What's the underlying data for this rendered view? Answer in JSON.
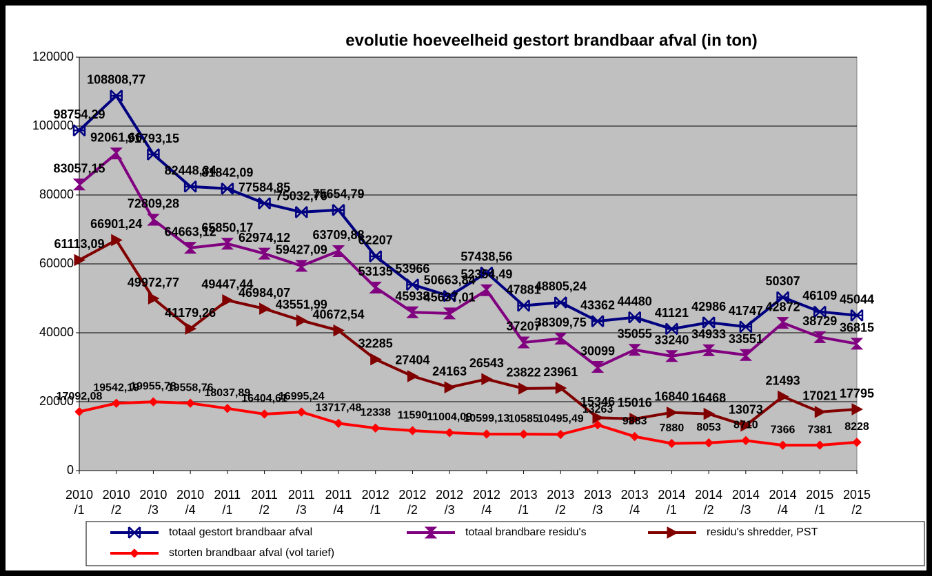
{
  "chart_data": {
    "type": "line",
    "title": "evolutie hoeveelheid gestort brandbaar afval (in ton)",
    "categories": [
      "2010 /1",
      "2010 /2",
      "2010 /3",
      "2010 /4",
      "2011 /1",
      "2011 /2",
      "2011 /3",
      "2011 /4",
      "2012 /1",
      "2012 /2",
      "2012 /3",
      "2012 /4",
      "2013 /1",
      "2013 /2",
      "2013 /3",
      "2013 /4",
      "2014 /1",
      "2014 /2",
      "2014 /3",
      "2014 /4",
      "2015 /1",
      "2015 /2"
    ],
    "ylim": [
      0,
      120000
    ],
    "yticks": [
      0,
      20000,
      40000,
      60000,
      80000,
      100000,
      120000
    ],
    "grid": true,
    "legend": "bottom",
    "series": [
      {
        "name": "totaal gestort brandbaar afval",
        "color": "#000080",
        "marker": "star",
        "values": [
          98754.29,
          108808.77,
          91793.15,
          82448.34,
          81842.09,
          77584.85,
          75032.76,
          75654.79,
          62207,
          53966,
          50663.84,
          57438.56,
          47881,
          48805.24,
          43362,
          44480,
          41121,
          42986,
          41747,
          50307,
          46109,
          45044
        ],
        "value_labels": [
          "98754,29",
          "108808,77",
          "91793,15",
          "82448,34",
          "81842,09",
          "77584,85",
          "75032,76",
          "75654,79",
          "62207",
          "53966",
          "50663,84",
          "57438,56",
          "47881",
          "48805,24",
          "43362",
          "44480",
          "41121",
          "42986",
          "41747",
          "50307",
          "46109",
          "45044"
        ]
      },
      {
        "name": "totaal brandbare residu's",
        "color": "#800080",
        "marker": "hourglass",
        "values": [
          83057.15,
          92061.66,
          72809.28,
          64663.12,
          65850.17,
          62974.12,
          59427.09,
          63709.88,
          53135,
          45938,
          45637.01,
          52354.49,
          37207,
          38309.75,
          30099,
          35055,
          33240,
          34933,
          33551,
          42872,
          38729,
          36815
        ],
        "value_labels": [
          "83057,15",
          "92061,66",
          "72809,28",
          "64663,12",
          "65850,17",
          "62974,12",
          "59427,09",
          "63709,88",
          "53135",
          "45938",
          "45637,01",
          "52354,49",
          "37207",
          "38309,75",
          "30099",
          "35055",
          "33240",
          "34933",
          "33551",
          "42872",
          "38729",
          "36815"
        ]
      },
      {
        "name": "residu's shredder, PST",
        "color": "#800000",
        "marker": "triangle",
        "values": [
          61113.09,
          66901.24,
          49972.77,
          41179.26,
          49447.44,
          46984.07,
          43551.99,
          40672.54,
          32285,
          27404,
          24163,
          26543,
          23822,
          23961,
          15346,
          15016,
          16840,
          16468,
          13073,
          21493,
          17021,
          17795
        ],
        "value_labels": [
          "61113,09",
          "66901,24",
          "49972,77",
          "41179,26",
          "49447,44",
          "46984,07",
          "43551,99",
          "40672,54",
          "32285",
          "27404",
          "24163",
          "26543",
          "23822",
          "23961",
          "15346",
          "15016",
          "16840",
          "16468",
          "13073",
          "21493",
          "17021",
          "17795"
        ]
      },
      {
        "name": "storten brandbaar afval (vol tarief)",
        "color": "#ff0000",
        "marker": "diamond",
        "values": [
          17092.08,
          19542.19,
          19955.78,
          19558.76,
          18037.89,
          16404.61,
          16995.24,
          13717.48,
          12338,
          11590,
          11004.09,
          10599.13,
          10585,
          10495.49,
          13263,
          9883,
          7880,
          8053,
          8710,
          7366,
          7381,
          8228
        ],
        "value_labels": [
          "17092,08",
          "19542,19",
          "19955,78",
          "19558,76",
          "18037,89",
          "16404,61",
          "16995,24",
          "13717,48",
          "12338",
          "11590",
          "11004,09",
          "10599,13",
          "10585",
          "10495,49",
          "13263",
          "9883",
          "7880",
          "8053",
          "8710",
          "7366",
          "7381",
          "8228"
        ]
      }
    ]
  }
}
